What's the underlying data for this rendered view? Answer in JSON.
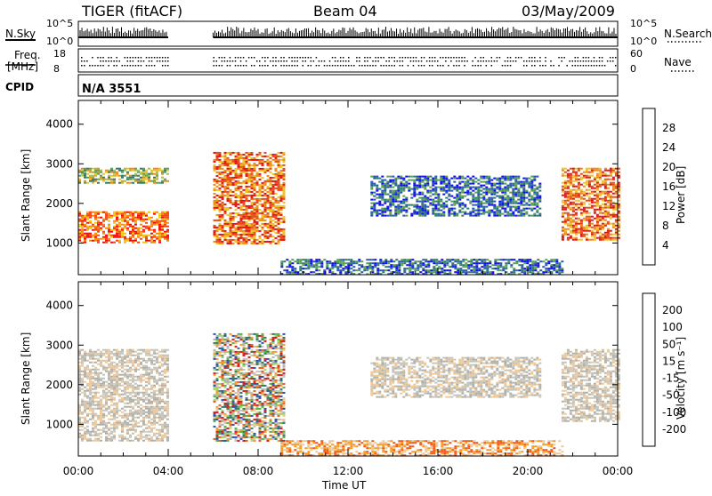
{
  "header": {
    "station": "TIGER (fitACF)",
    "beam": "Beam 04",
    "date": "03/May/2009"
  },
  "summary_panels": {
    "nsky_label": "N.Sky",
    "nsky_ticks": [
      "10^5",
      "10^0"
    ],
    "nsearch_label": "N.Search",
    "nsearch_ticks": [
      "10^5",
      "10^0"
    ],
    "freq_label_line1": "Freq.",
    "freq_label_line2": "[MHz]",
    "freq_ticks": [
      "18",
      "8"
    ],
    "nave_label": "Nave",
    "nave_ticks": [
      "60",
      "0"
    ],
    "cpid_label": "CPID",
    "cpid_value": "N/A 3551"
  },
  "colors": {
    "power_scale": [
      "#1010e0",
      "#2a55b0",
      "#2f7a6a",
      "#5a9e5a",
      "#a6c23a",
      "#f0c21e",
      "#f08a16",
      "#ec4a12",
      "#e81010"
    ],
    "velocity_scale": [
      "#e21414",
      "#ee5a1a",
      "#f39a28",
      "#efc898",
      "#c4c4bc",
      "#b0b0aa",
      "#9ed468",
      "#55b23e",
      "#2f7a6a",
      "#2a50b8"
    ]
  },
  "chart_data": [
    {
      "type": "heatmap",
      "title": "",
      "xlabel": "",
      "ylabel": "Slant Range [km]",
      "yticks": [
        "1000",
        "2000",
        "3000",
        "4000"
      ],
      "ylim": [
        200,
        4600
      ],
      "xlim": [
        "00:00",
        "24:00"
      ],
      "xticks": [
        "00:00",
        "04:00",
        "08:00",
        "12:00",
        "16:00",
        "20:00",
        "00:00"
      ],
      "colorbar_label": "Power [dB]",
      "colorbar_ticks": [
        "4",
        "8",
        "12",
        "16",
        "20",
        "24",
        "28"
      ],
      "data_gap_hours": [
        4.0,
        6.0
      ],
      "echo_regions": [
        {
          "t": [
            0.0,
            4.0
          ],
          "range_km": [
            1000,
            1800
          ],
          "level": "high"
        },
        {
          "t": [
            0.0,
            4.0
          ],
          "range_km": [
            2500,
            2900
          ],
          "level": "medium"
        },
        {
          "t": [
            6.0,
            9.2
          ],
          "range_km": [
            1000,
            3300
          ],
          "level": "high"
        },
        {
          "t": [
            9.0,
            21.5
          ],
          "range_km": [
            200,
            600
          ],
          "level": "low"
        },
        {
          "t": [
            13.0,
            20.5
          ],
          "range_km": [
            1700,
            2700
          ],
          "level": "low"
        },
        {
          "t": [
            21.5,
            24.0
          ],
          "range_km": [
            1100,
            2900
          ],
          "level": "high"
        }
      ]
    },
    {
      "type": "heatmap",
      "title": "",
      "xlabel": "Time UT",
      "ylabel": "Slant Range [km]",
      "yticks": [
        "1000",
        "2000",
        "3000",
        "4000"
      ],
      "ylim": [
        200,
        4600
      ],
      "xlim": [
        "00:00",
        "24:00"
      ],
      "xticks": [
        "00:00",
        "04:00",
        "08:00",
        "12:00",
        "16:00",
        "20:00",
        "00:00"
      ],
      "colorbar_label": "Velocity [m s⁻¹]",
      "colorbar_ticks": [
        "200",
        "100",
        "50",
        "15",
        "-15",
        "-50",
        "-100",
        "-200"
      ],
      "data_gap_hours": [
        4.0,
        6.0
      ],
      "echo_regions": [
        {
          "t": [
            0.0,
            4.0
          ],
          "range_km": [
            600,
            2900
          ],
          "level": "near-zero"
        },
        {
          "t": [
            6.0,
            9.2
          ],
          "range_km": [
            600,
            3300
          ],
          "level": "mixed"
        },
        {
          "t": [
            9.0,
            21.5
          ],
          "range_km": [
            200,
            600
          ],
          "level": "negative"
        },
        {
          "t": [
            13.0,
            20.5
          ],
          "range_km": [
            1700,
            2700
          ],
          "level": "near-zero"
        },
        {
          "t": [
            21.5,
            24.0
          ],
          "range_km": [
            1100,
            2900
          ],
          "level": "near-zero"
        }
      ]
    }
  ]
}
